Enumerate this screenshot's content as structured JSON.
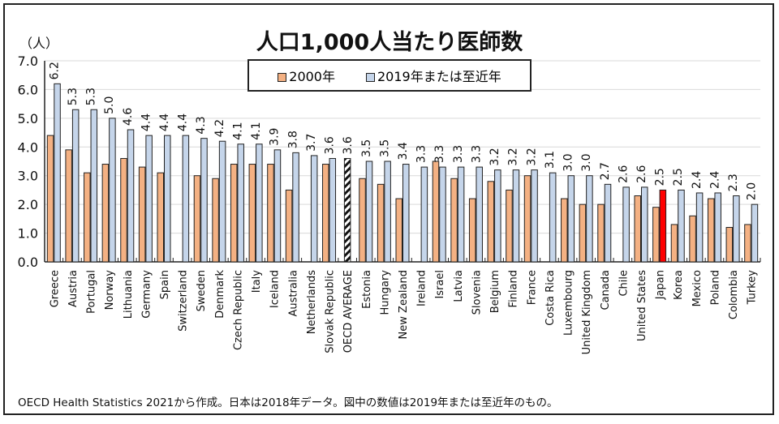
{
  "chart_data": {
    "type": "bar",
    "title": "人口1,000人当たり医師数",
    "ylabel": "（人）",
    "ylim": [
      0,
      7
    ],
    "yticks": [
      "0.0",
      "1.0",
      "2.0",
      "3.0",
      "4.0",
      "5.0",
      "6.0",
      "7.0"
    ],
    "grid": true,
    "legend_placement": "top-center",
    "categories": [
      "Greece",
      "Austria",
      "Portugal",
      "Norway",
      "Lithuania",
      "Germany",
      "Spain",
      "Switzerland",
      "Sweden",
      "Denmark",
      "Czech Republic",
      "Italy",
      "Iceland",
      "Australia",
      "Netherlands",
      "Slovak Republic",
      "OECD AVERAGE",
      "Estonia",
      "Hungary",
      "New Zealand",
      "Ireland",
      "Israel",
      "Latvia",
      "Slovenia",
      "Belgium",
      "Finland",
      "France",
      "Costa Rica",
      "Luxembourg",
      "United Kingdom",
      "Canada",
      "Chile",
      "United States",
      "Japan",
      "Korea",
      "Mexico",
      "Poland",
      "Colombia",
      "Turkey"
    ],
    "series": [
      {
        "name": "2000年",
        "color": "#f4b183",
        "values": [
          4.4,
          3.9,
          3.1,
          3.4,
          3.6,
          3.3,
          3.1,
          null,
          3.0,
          2.9,
          3.4,
          3.4,
          3.4,
          2.5,
          null,
          3.4,
          null,
          2.9,
          2.7,
          2.2,
          null,
          3.5,
          2.9,
          2.2,
          2.8,
          2.5,
          3.0,
          null,
          2.2,
          2.0,
          2.0,
          null,
          2.3,
          1.9,
          1.3,
          1.6,
          2.2,
          1.2,
          1.3
        ]
      },
      {
        "name": "2019年または至近年",
        "color": "#c5d5ea",
        "values": [
          6.2,
          5.3,
          5.3,
          5.0,
          4.6,
          4.4,
          4.4,
          4.4,
          4.3,
          4.2,
          4.1,
          4.1,
          3.9,
          3.8,
          3.7,
          3.6,
          3.6,
          3.5,
          3.5,
          3.4,
          3.3,
          3.3,
          3.3,
          3.3,
          3.2,
          3.2,
          3.2,
          3.1,
          3.0,
          3.0,
          2.7,
          2.6,
          2.6,
          2.5,
          2.5,
          2.4,
          2.4,
          2.3,
          2.0
        ],
        "labels": [
          "6.2",
          "5.3",
          "5.3",
          "5.0",
          "4.6",
          "4.4",
          "4.4",
          "4.4",
          "4.3",
          "4.2",
          "4.1",
          "4.1",
          "3.9",
          "3.8",
          "3.7",
          "3.6",
          "3.6",
          "3.5",
          "3.5",
          "3.4",
          "3.3",
          "3.3",
          "3.3",
          "3.3",
          "3.2",
          "3.2",
          "3.2",
          "3.1",
          "3.0",
          "3.0",
          "2.7",
          "2.6",
          "2.6",
          "2.5",
          "2.5",
          "2.4",
          "2.4",
          "2.3",
          "2.0"
        ]
      }
    ],
    "highlights": {
      "Japan": "#ff0000",
      "OECD AVERAGE": "hatched"
    }
  },
  "note": "OECD Health Statistics 2021から作成。日本は2018年データ。図中の数値は2019年または至近年のもの。"
}
